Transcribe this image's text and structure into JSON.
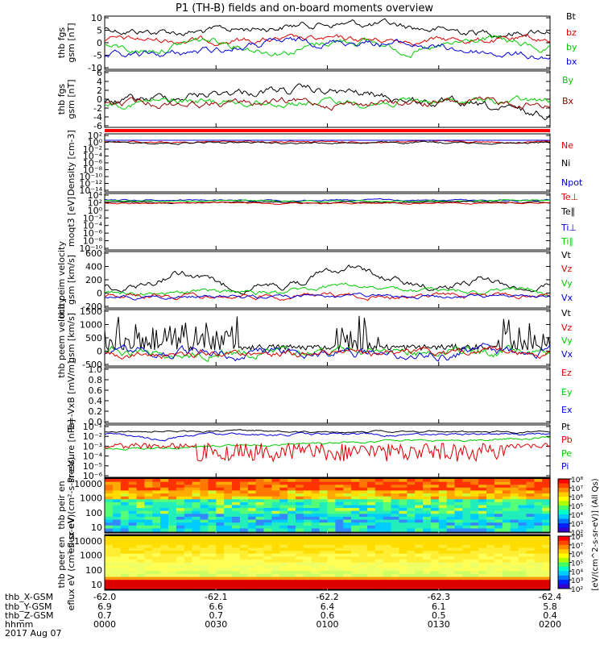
{
  "title": "P1 (TH-B) fields and on-board moments overview",
  "footer": {
    "rows": [
      {
        "label": "thb_X-GSM",
        "values": [
          "-62.0",
          "-62.1",
          "-62.2",
          "-62.3",
          "-62.4"
        ]
      },
      {
        "label": "thb_Y-GSM",
        "values": [
          "6.9",
          "6.6",
          "6.4",
          "6.1",
          "5.8"
        ]
      },
      {
        "label": "thb_Z-GSM",
        "values": [
          "0.7",
          "0.7",
          "0.6",
          "0.5",
          "0.4"
        ]
      },
      {
        "label": "hhmm",
        "values": [
          "0000",
          "0030",
          "0100",
          "0130",
          "0200"
        ]
      }
    ],
    "date": "2017 Aug 07"
  },
  "colorbar": {
    "label": "[eV/(cm^2-s-sr-eV)] (All Qs)",
    "ticks_top": [
      "10⁸",
      "10⁷",
      "10⁶",
      "10⁵",
      "10⁴",
      "10³",
      "10²"
    ],
    "ticks_bottom": [
      "10⁸",
      "10⁷",
      "10⁶",
      "10⁵",
      "10⁴",
      "10³",
      "10²"
    ]
  },
  "chart_data": [
    {
      "type": "line",
      "ylabel": "thb fgs gsm [nT]",
      "ylim": [
        -10,
        10
      ],
      "yticks": [
        "10",
        "5",
        "0",
        "-5",
        "-10"
      ],
      "series": [
        {
          "name": "Bt",
          "color": "#000000"
        },
        {
          "name": "bz",
          "color": "#dd0000"
        },
        {
          "name": "by",
          "color": "#00cc00"
        },
        {
          "name": "bx",
          "color": "#0000dd"
        }
      ]
    },
    {
      "type": "line",
      "ylabel": "thb fgs gsm [nT]",
      "ylim": [
        -7,
        7
      ],
      "yticks": [
        "6",
        "4",
        "2",
        "0",
        "-2",
        "-4",
        "-6"
      ],
      "series": [
        {
          "name": "By",
          "color": "#00cc00"
        },
        {
          "name": "Bx",
          "color": "#990000"
        }
      ]
    },
    {
      "type": "line",
      "ylabel": "Density [cm-3]",
      "ylim": [
        1e-14,
        100.0
      ],
      "yscale": "log",
      "yticks": [
        "10²",
        "10⁰",
        "10⁻²",
        "10⁻⁴",
        "10⁻⁶",
        "10⁻⁸",
        "10⁻¹⁰",
        "10⁻¹²",
        "10⁻¹⁴"
      ],
      "series": [
        {
          "name": "Ne",
          "color": "#dd0000"
        },
        {
          "name": "Ni",
          "color": "#000000"
        },
        {
          "name": "Npot",
          "color": "#0000dd"
        }
      ]
    },
    {
      "type": "line",
      "ylabel": "moqt3 [eV]",
      "ylim": [
        1e-10,
        10000.0
      ],
      "yscale": "log",
      "yticks": [
        "10⁴",
        "10²",
        "10⁰",
        "10⁻²",
        "10⁻⁴",
        "10⁻⁶",
        "10⁻⁸",
        "10⁻¹⁰"
      ],
      "series": [
        {
          "name": "Te⊥",
          "color": "#dd0000"
        },
        {
          "name": "Te∥",
          "color": "#000000"
        },
        {
          "name": "Ti⊥",
          "color": "#0000dd"
        },
        {
          "name": "Ti∥",
          "color": "#00cc00"
        }
      ]
    },
    {
      "type": "line",
      "ylabel": "thb peim velocity gsm [km/s]",
      "ylim": [
        -200,
        600
      ],
      "yticks": [
        "600",
        "400",
        "200",
        "0",
        "-200"
      ],
      "series": [
        {
          "name": "Vt",
          "color": "#000000"
        },
        {
          "name": "Vz",
          "color": "#dd0000"
        },
        {
          "name": "Vy",
          "color": "#00cc00"
        },
        {
          "name": "Vx",
          "color": "#0000dd"
        }
      ]
    },
    {
      "type": "line",
      "ylabel": "thb peem velocity gsm [km/s]",
      "ylim": [
        -600,
        1500
      ],
      "yticks": [
        "1500",
        "1000",
        "500",
        "0",
        "-500"
      ],
      "series": [
        {
          "name": "Vt",
          "color": "#000000"
        },
        {
          "name": "Vz",
          "color": "#dd0000"
        },
        {
          "name": "Vy",
          "color": "#00cc00"
        },
        {
          "name": "Vx",
          "color": "#0000dd"
        }
      ]
    },
    {
      "type": "line",
      "ylabel": "E=-VxB [mV/m]",
      "ylim": [
        0,
        1
      ],
      "yticks": [
        "1.0",
        "0.8",
        "0.6",
        "0.4",
        "0.2",
        "0.0"
      ],
      "series": [
        {
          "name": "Ez",
          "color": "#dd0000"
        },
        {
          "name": "Ey",
          "color": "#00cc00"
        },
        {
          "name": "Ex",
          "color": "#0000dd"
        }
      ]
    },
    {
      "type": "line",
      "ylabel": "Pressure [nPa]",
      "ylim": [
        1e-06,
        0.1
      ],
      "yscale": "log",
      "yticks": [
        "10⁻¹",
        "10⁻²",
        "10⁻³",
        "10⁻⁴",
        "10⁻⁵",
        "10⁻⁶"
      ],
      "series": [
        {
          "name": "Pt",
          "color": "#000000"
        },
        {
          "name": "Pb",
          "color": "#dd0000"
        },
        {
          "name": "Pe",
          "color": "#00cc00"
        },
        {
          "name": "Pi",
          "color": "#0000dd"
        }
      ]
    },
    {
      "type": "heatmap",
      "ylabel": "thb peir en eflux eV (cm²-s-sr-eV)",
      "yscale": "log",
      "ylim": [
        5,
        20000
      ],
      "yticks": [
        "10000",
        "1000",
        "100",
        "10"
      ]
    },
    {
      "type": "heatmap",
      "ylabel": "thb peer en eflux eV (cm²-s-sr-eV)",
      "yscale": "log",
      "ylim": [
        5,
        20000
      ],
      "yticks": [
        "10000",
        "1000",
        "100",
        "10"
      ]
    }
  ]
}
